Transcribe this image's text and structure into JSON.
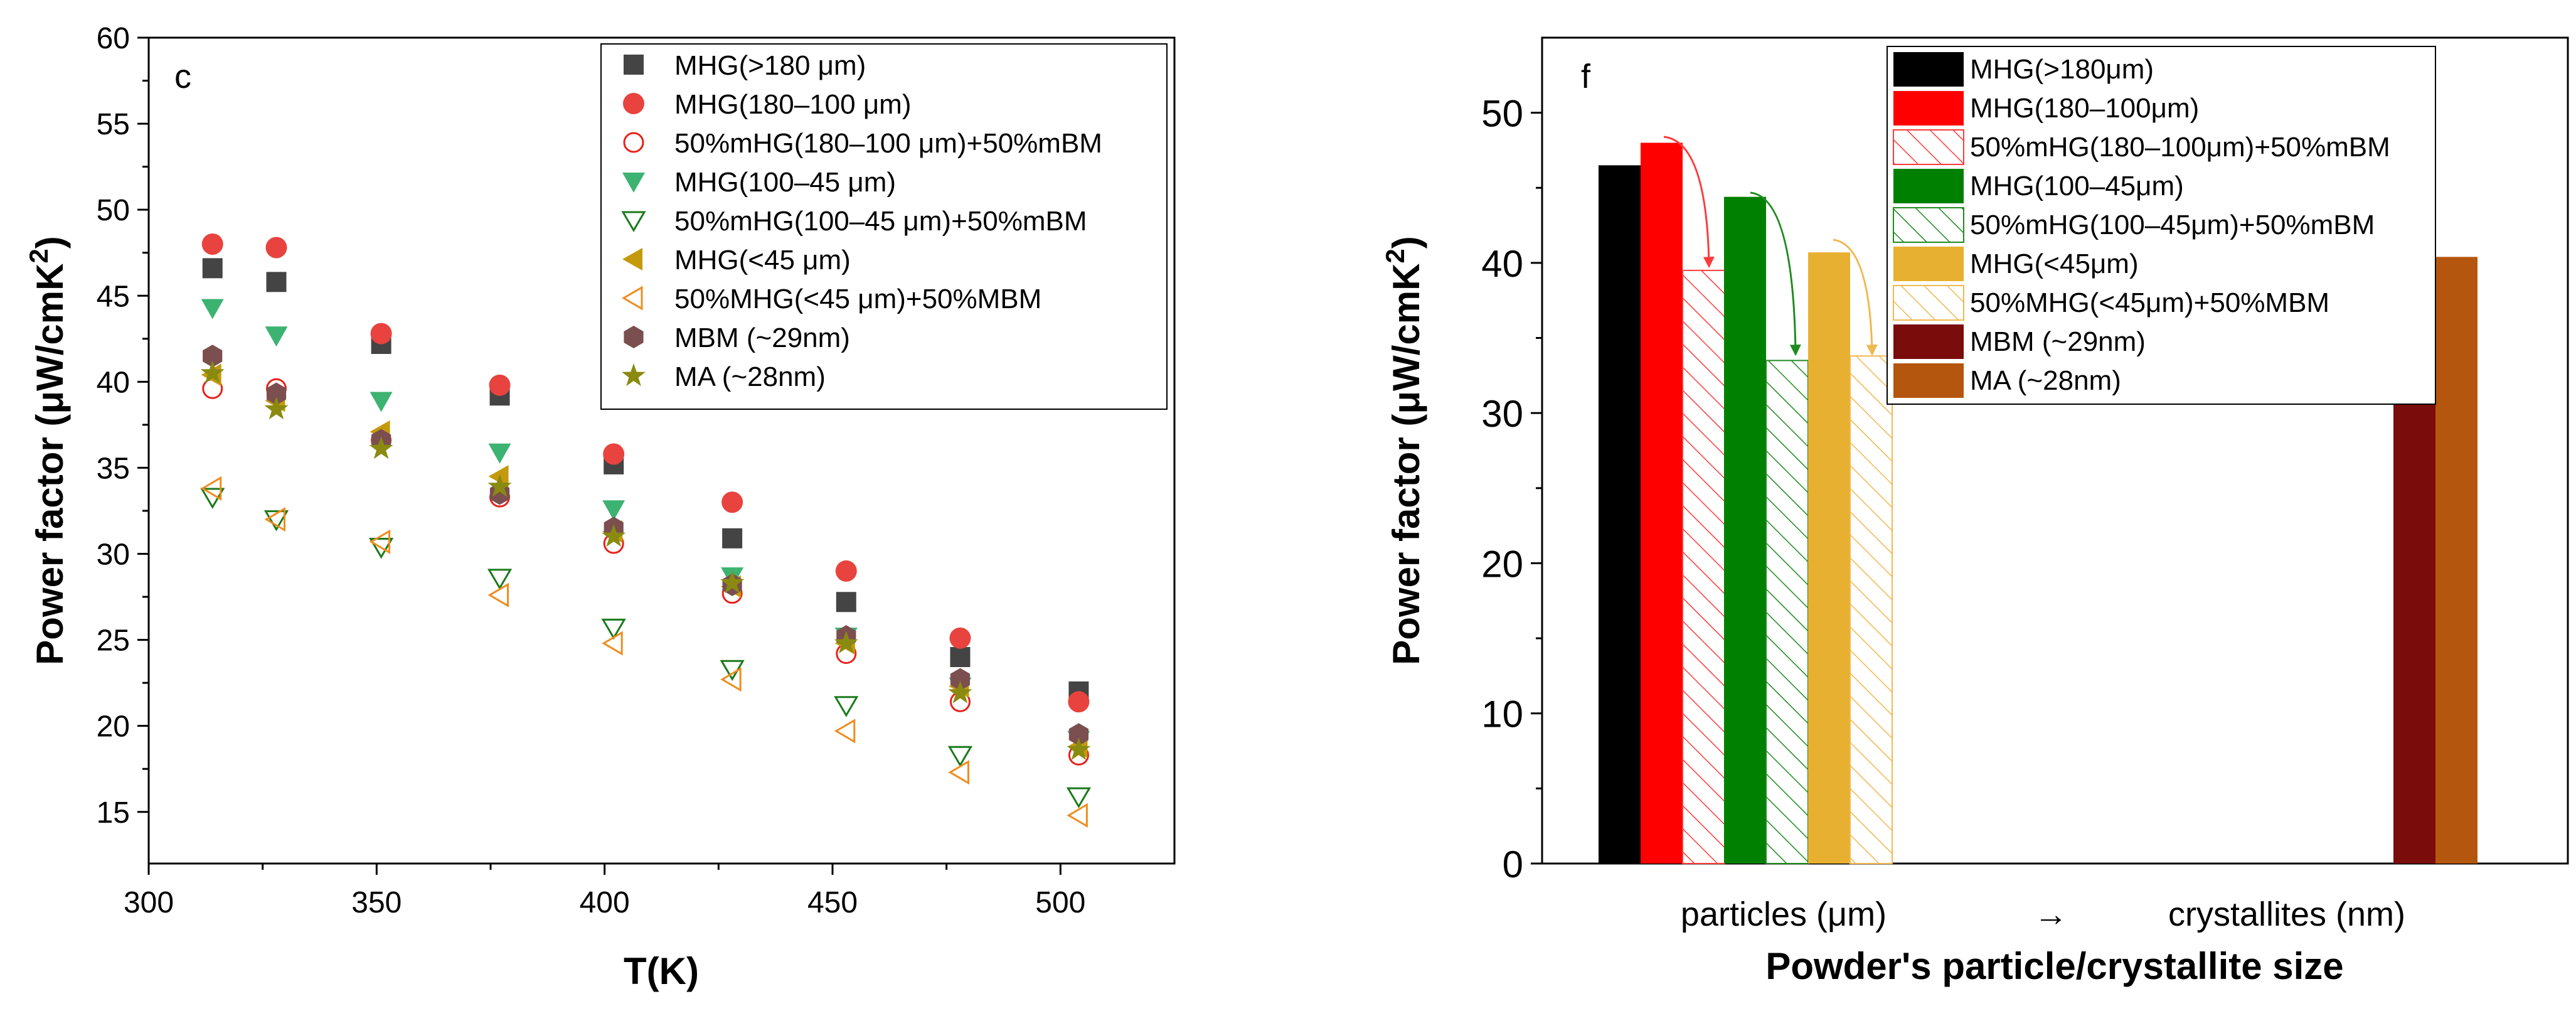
{
  "chart_data": [
    {
      "type": "scatter",
      "panel_label": "c",
      "xlabel": "T(K)",
      "ylabel": "Power factor (μW/cmK²)",
      "ylabel_parts": [
        "Power factor (μW/cmK",
        "2",
        ")"
      ],
      "xlim": [
        300,
        525
      ],
      "ylim": [
        12,
        60
      ],
      "xticks": [
        300,
        350,
        400,
        450,
        500
      ],
      "yticks": [
        15,
        20,
        25,
        30,
        35,
        40,
        45,
        50,
        55,
        60
      ],
      "grid": false,
      "legend": "top-right",
      "x": [
        314,
        328,
        351,
        377,
        402,
        428,
        453,
        478,
        504
      ],
      "series": [
        {
          "name": "MHG(>180 μm)",
          "marker": "square-filled",
          "color": "#444444",
          "values": [
            46.6,
            45.8,
            42.2,
            39.2,
            35.2,
            30.9,
            27.2,
            24.0,
            22.0
          ]
        },
        {
          "name": "MHG(180–100 μm)",
          "marker": "circle-filled",
          "color": "#e8433e",
          "values": [
            48.0,
            47.8,
            42.8,
            39.8,
            35.8,
            33.0,
            29.0,
            25.1,
            21.4
          ]
        },
        {
          "name": "50%mHG(180–100 μm)+50%mBM",
          "marker": "circle-open",
          "color": "#e8201a",
          "values": [
            39.6,
            39.6,
            36.6,
            33.3,
            30.6,
            27.7,
            24.2,
            21.4,
            18.3
          ]
        },
        {
          "name": "MHG(100–45 μm)",
          "marker": "tri-down-filled",
          "color": "#3cb371",
          "values": [
            44.3,
            42.7,
            38.9,
            35.9,
            32.6,
            28.7,
            25.2,
            22.3,
            19.2
          ]
        },
        {
          "name": "50%mHG(100–45 μm)+50%mBM",
          "marker": "tri-down-open",
          "color": "#1a7a1a",
          "values": [
            33.3,
            32.0,
            30.4,
            28.6,
            25.7,
            23.3,
            21.2,
            18.3,
            15.9
          ]
        },
        {
          "name": "MHG(<45 μm)",
          "marker": "tri-left-filled",
          "color": "#c49a0c",
          "values": [
            40.4,
            38.9,
            37.1,
            34.5,
            31.3,
            28.1,
            24.8,
            22.3,
            18.8
          ]
        },
        {
          "name": "50%MHG(<45 μm)+50%MBM",
          "marker": "tri-left-open",
          "color": "#f08c1e",
          "values": [
            33.8,
            32.0,
            30.7,
            27.6,
            24.8,
            22.7,
            19.7,
            17.3,
            14.8
          ]
        },
        {
          "name": "MBM (~29nm)",
          "marker": "hexagon-filled",
          "color": "#7b4f4f",
          "values": [
            41.5,
            39.3,
            36.6,
            33.5,
            31.5,
            28.2,
            25.2,
            22.7,
            19.5
          ]
        },
        {
          "name": "MA (~28nm)",
          "marker": "star-filled",
          "color": "#8a8a10",
          "values": [
            40.5,
            38.4,
            36.1,
            33.9,
            31.0,
            28.3,
            24.8,
            21.9,
            18.6
          ]
        }
      ]
    },
    {
      "type": "bar",
      "panel_label": "f",
      "xlabel": "Powder's particle/crystallite size",
      "ylabel": "Power factor (μW/cmK²)",
      "ylabel_parts": [
        "Power factor (μW/cmK",
        "2",
        ")"
      ],
      "ylim": [
        0,
        55
      ],
      "yticks": [
        0,
        10,
        20,
        30,
        40,
        50
      ],
      "grid": false,
      "legend": "top-center",
      "group_labels": [
        "particles (μm)",
        "→",
        "crystallites (nm)"
      ],
      "bars": [
        {
          "name": "MHG(>180μm)",
          "value": 46.5,
          "color": "#000000",
          "hatched": false
        },
        {
          "name": "MHG(180–100μm)",
          "value": 48.0,
          "color": "#ff0000",
          "hatched": false
        },
        {
          "name": "50%mHG(180–100μm)+50%mBM",
          "value": 39.5,
          "color": "#ff3b3b",
          "hatched": true
        },
        {
          "name": "MHG(100–45μm)",
          "value": 44.4,
          "color": "#008000",
          "hatched": false
        },
        {
          "name": "50%mHG(100–45μm)+50%mBM",
          "value": 33.5,
          "color": "#1f8a1f",
          "hatched": true
        },
        {
          "name": "MHG(<45μm)",
          "value": 40.7,
          "color": "#e8b030",
          "hatched": false
        },
        {
          "name": "50%MHG(<45μm)+50%MBM",
          "value": 33.8,
          "color": "#f0b850",
          "hatched": true
        },
        {
          "name": "MBM (~29nm)",
          "value": 41.5,
          "color": "#7a0c0c",
          "hatched": false
        },
        {
          "name": "MA (~28nm)",
          "value": 40.4,
          "color": "#b5560f",
          "hatched": false
        }
      ]
    }
  ]
}
